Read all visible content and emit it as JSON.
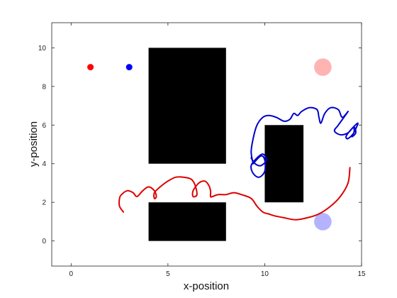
{
  "chart_data": {
    "type": "scatter",
    "xlabel": "x-position",
    "ylabel": "y-position",
    "xlim": [
      -1,
      15
    ],
    "ylim": [
      -1.3,
      11.3
    ],
    "xticks": [
      0,
      5,
      10,
      15
    ],
    "yticks": [
      0,
      2,
      4,
      6,
      8,
      10
    ],
    "grid": false,
    "obstacles": [
      {
        "x": [
          4,
          8
        ],
        "y": [
          4,
          10
        ]
      },
      {
        "x": [
          4,
          8
        ],
        "y": [
          0,
          2
        ]
      },
      {
        "x": [
          10,
          12
        ],
        "y": [
          2,
          6
        ]
      }
    ],
    "start_points": [
      {
        "x": 1,
        "y": 9,
        "color": "#ff0000"
      },
      {
        "x": 3,
        "y": 9,
        "color": "#0000ff"
      }
    ],
    "goal_regions": [
      {
        "x": 13,
        "y": 9,
        "r": 0.45,
        "color": "#ffb3b3"
      },
      {
        "x": 13,
        "y": 1,
        "r": 0.45,
        "color": "#b3b3ff"
      }
    ],
    "series": [
      {
        "color": "#dd0000",
        "x": [
          2.7,
          2.5,
          2.5,
          2.6,
          2.9,
          3.2,
          3.4,
          3.7,
          4.0,
          4.3,
          4.4,
          4.3,
          4.3,
          4.6,
          5.0,
          5.4,
          5.8,
          6.2,
          6.4,
          6.5,
          6.3,
          6.3,
          6.6,
          6.9,
          7.1,
          7.2,
          7.2,
          7.3,
          7.6,
          8.0,
          8.4,
          8.8,
          9.3,
          9.6,
          9.9,
          10.2,
          10.5,
          11.0,
          11.6,
          12.2,
          12.8,
          13.4,
          13.9,
          14.3,
          14.4
        ],
        "y": [
          1.5,
          1.8,
          2.2,
          2.4,
          2.6,
          2.5,
          2.3,
          2.6,
          2.8,
          2.6,
          2.3,
          2.2,
          2.5,
          2.8,
          3.1,
          3.3,
          3.3,
          3.2,
          2.9,
          2.4,
          2.3,
          2.6,
          3.0,
          3.1,
          2.9,
          2.6,
          2.3,
          2.3,
          2.4,
          2.4,
          2.5,
          2.4,
          2.2,
          1.8,
          1.5,
          1.4,
          1.3,
          1.2,
          1.1,
          1.2,
          1.4,
          1.8,
          2.3,
          3.0,
          3.8
        ]
      },
      {
        "color": "#0000cc",
        "x": [
          9.4,
          9.3,
          9.4,
          9.6,
          9.9,
          10.2,
          10.6,
          11.0,
          11.3,
          11.5,
          11.7,
          11.9,
          12.3,
          12.7,
          12.8,
          12.9,
          13.1,
          13.4,
          13.8,
          14.0,
          14.3,
          13.8,
          13.6,
          13.9,
          14.3,
          14.6,
          14.7,
          14.5,
          14.7,
          14.8,
          14.4,
          14.2,
          14.3,
          14.6,
          14.6
        ],
        "y": [
          4.0,
          4.6,
          5.3,
          6.0,
          6.4,
          6.5,
          6.4,
          6.2,
          6.3,
          6.6,
          6.5,
          6.7,
          6.9,
          6.8,
          6.4,
          6.1,
          6.6,
          6.9,
          6.8,
          6.4,
          6.7,
          6.0,
          5.7,
          5.5,
          5.6,
          5.9,
          5.6,
          5.4,
          5.8,
          6.1,
          5.7,
          5.4,
          5.3,
          5.6,
          5.9
        ]
      },
      {
        "color": "#0000cc",
        "x": [
          9.4,
          9.8,
          10.0,
          10.0,
          9.7,
          9.4,
          9.3,
          9.6,
          9.9,
          10.1,
          9.8,
          9.5,
          9.3
        ],
        "y": [
          4.0,
          4.4,
          4.2,
          3.6,
          3.3,
          3.5,
          3.9,
          4.3,
          4.5,
          4.2,
          3.9,
          4.0,
          4.3
        ]
      }
    ]
  }
}
